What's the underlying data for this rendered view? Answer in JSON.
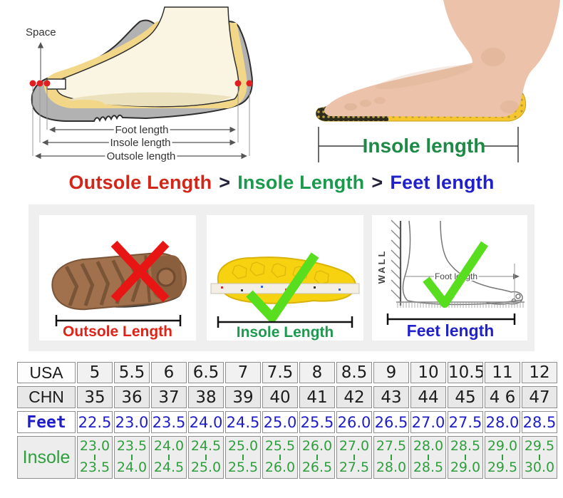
{
  "colors": {
    "rule_red": "#d22618",
    "rule_green": "#1b9a4d",
    "rule_blue": "#2121cc",
    "check_green": "#58de1e",
    "cross_red": "#e81515",
    "table_feet_blue": "#1d1dcb",
    "table_insole_green": "#2f9e3d"
  },
  "measure_diagram": {
    "space_label": "Space",
    "foot_length_label": "Foot length",
    "insole_length_label": "Insole length",
    "outsole_length_label": "Outsole length"
  },
  "insole_photo": {
    "label": "Insole length"
  },
  "headline": {
    "outsole": "Outsole Length",
    "sep1": ">",
    "insole": "Insole Length",
    "sep2": ">",
    "feet": "Feet length"
  },
  "panels": {
    "outsole": {
      "label": "Outsole Length",
      "status": "wrong"
    },
    "insole": {
      "label": "Insole Length",
      "status": "correct"
    },
    "feet": {
      "label": "Feet length",
      "status": "correct",
      "wall_label": "WALL",
      "foot_length_label": "Foot length"
    }
  },
  "size_table": {
    "rows": [
      {
        "key": "usa",
        "label": "USA",
        "values": [
          "5",
          "5.5",
          "6",
          "6.5",
          "7",
          "7.5",
          "8",
          "8.5",
          "9",
          "10",
          "10.5",
          "11",
          "12"
        ]
      },
      {
        "key": "chn",
        "label": "CHN",
        "values": [
          "35",
          "36",
          "37",
          "38",
          "39",
          "40",
          "41",
          "42",
          "43",
          "44",
          "45",
          "4 6",
          "47"
        ]
      },
      {
        "key": "feet",
        "label": "Feet",
        "values": [
          "22.5",
          "23.0",
          "23.5",
          "24.0",
          "24.5",
          "25.0",
          "25.5",
          "26.0",
          "26.5",
          "27.0",
          "27.5",
          "28.0",
          "28.5"
        ]
      },
      {
        "key": "insole",
        "label": "Insole",
        "values_top": [
          "23.0",
          "23.5",
          "24.0",
          "24.5",
          "25.0",
          "25.5",
          "26.0",
          "27.0",
          "27.5",
          "28.0",
          "28.5",
          "29.0",
          "29.5"
        ],
        "values_bottom": [
          "23.5",
          "24.0",
          "24.5",
          "25.0",
          "25.5",
          "26.0",
          "26.5",
          "27.5",
          "28.0",
          "28.5",
          "29.0",
          "29.5",
          "30.0"
        ]
      }
    ]
  }
}
